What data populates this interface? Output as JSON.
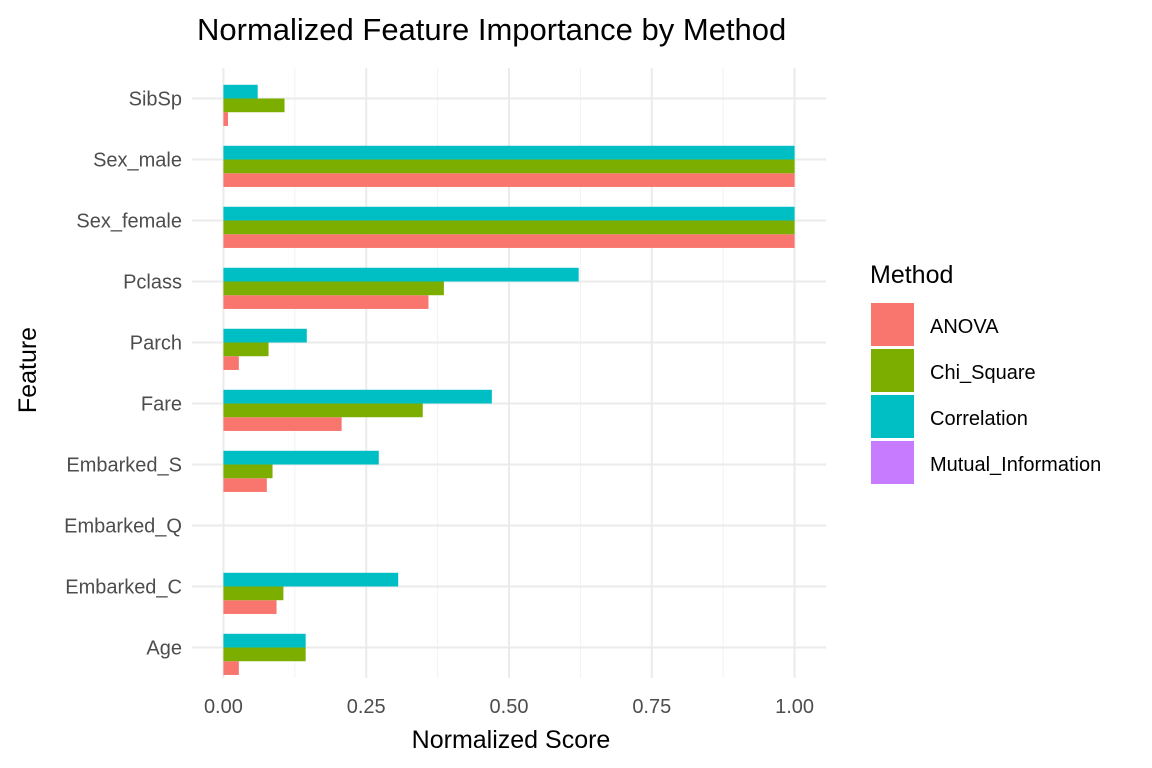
{
  "chart_data": {
    "type": "bar",
    "orientation": "horizontal",
    "title": "Normalized Feature Importance by Method",
    "xlabel": "Normalized Score",
    "ylabel": "Feature",
    "xlim": [
      -0.055,
      1.055
    ],
    "xticks": [
      0.0,
      0.25,
      0.5,
      0.75,
      1.0
    ],
    "xtick_labels": [
      "0.00",
      "0.25",
      "0.50",
      "0.75",
      "1.00"
    ],
    "grid": true,
    "legend_title": "Method",
    "legend_position": "right",
    "categories": [
      "Age",
      "Embarked_C",
      "Embarked_Q",
      "Embarked_S",
      "Fare",
      "Parch",
      "Pclass",
      "Sex_female",
      "Sex_male",
      "SibSp"
    ],
    "series": [
      {
        "name": "ANOVA",
        "color": "#F8766D",
        "values": [
          0.027,
          0.093,
          0.0,
          0.076,
          0.207,
          0.027,
          0.359,
          1.0,
          1.0,
          0.008
        ]
      },
      {
        "name": "Chi_Square",
        "color": "#7CAE00",
        "values": [
          0.144,
          0.105,
          0.0,
          0.086,
          0.349,
          0.079,
          0.386,
          1.0,
          1.0,
          0.107
        ]
      },
      {
        "name": "Correlation",
        "color": "#00BFC4",
        "values": [
          0.144,
          0.306,
          0.0,
          0.272,
          0.47,
          0.146,
          0.622,
          1.0,
          1.0,
          0.06
        ]
      },
      {
        "name": "Mutual_Information",
        "color": "#C77CFF",
        "values": [
          0,
          0,
          0,
          0,
          0,
          0,
          0,
          0,
          0,
          0
        ]
      }
    ]
  }
}
